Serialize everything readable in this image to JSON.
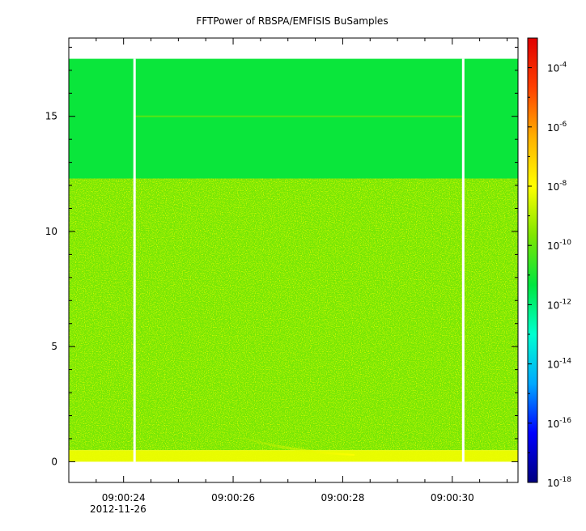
{
  "chart_data": {
    "type": "heatmap",
    "title": "FFTPower of RBSPA/EMFISIS  BuSamples",
    "xlabel": "",
    "ylabel": "",
    "date_label": "2012-11-26",
    "x_ticks": [
      "09:00:24",
      "09:00:26",
      "09:00:28",
      "09:00:30"
    ],
    "x_range": [
      "09:00:23.0",
      "09:00:31.2"
    ],
    "y_ticks": [
      0,
      5,
      10,
      15
    ],
    "y_range": [
      -0.9,
      18.4
    ],
    "data_extent_y": [
      0,
      17.5
    ],
    "data_gaps_x": [
      "09:00:24.2",
      "09:00:30.2"
    ],
    "colorbar": {
      "scale": "log",
      "range": [
        1e-18,
        0.001
      ],
      "tick_labels": [
        {
          "base": "10",
          "exp": "-4"
        },
        {
          "base": "10",
          "exp": "-6"
        },
        {
          "base": "10",
          "exp": "-8"
        },
        {
          "base": "10",
          "exp": "-10"
        },
        {
          "base": "10",
          "exp": "-12"
        },
        {
          "base": "10",
          "exp": "-14"
        },
        {
          "base": "10",
          "exp": "-16"
        },
        {
          "base": "10",
          "exp": "-18"
        }
      ],
      "tick_exponents": [
        -4,
        -6,
        -8,
        -10,
        -12,
        -14,
        -16,
        -18
      ],
      "colors": [
        "#00007f",
        "#0000ff",
        "#00a8ff",
        "#00ffd0",
        "#00e640",
        "#7fe600",
        "#ffff00",
        "#ffb000",
        "#ff4000",
        "#e00000"
      ]
    },
    "bands": [
      {
        "y_range": [
          12.3,
          17.5
        ],
        "typical_power_log10": -11.2
      },
      {
        "y_range": [
          0.5,
          12.3
        ],
        "typical_power_log10": -9.8
      },
      {
        "y_range": [
          0,
          0.5
        ],
        "typical_power_log10": -8.3
      }
    ],
    "line_feature": {
      "y": 15,
      "typical_power_log10": -10.2
    }
  }
}
